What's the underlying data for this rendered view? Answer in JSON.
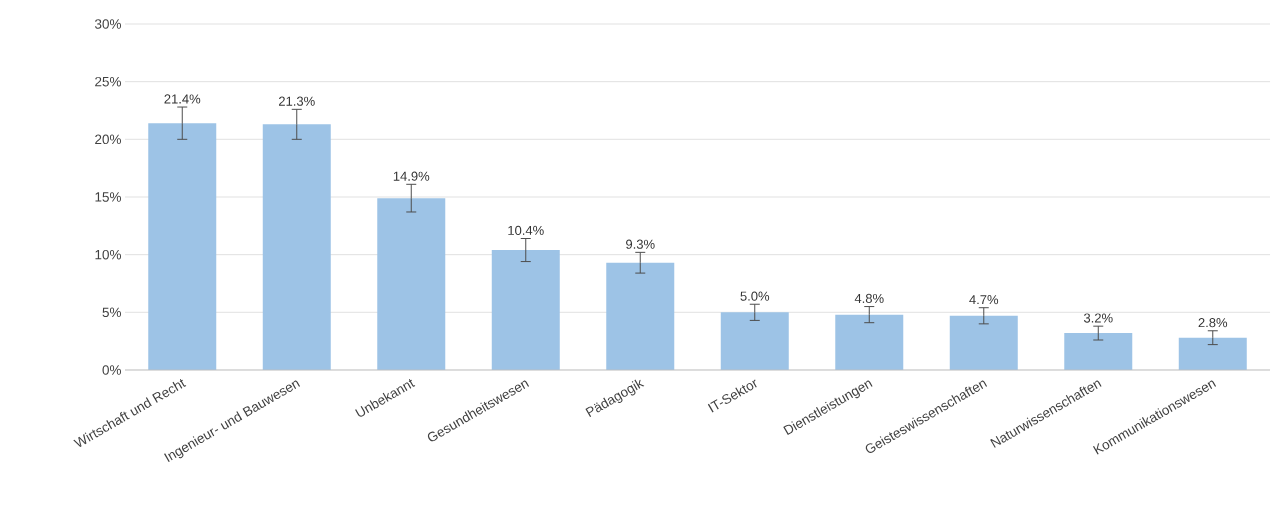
{
  "chart_data": {
    "type": "bar",
    "categories": [
      "Wirtschaft und Recht",
      "Ingenieur- und Bauwesen",
      "Unbekannt",
      "Gesundheitswesen",
      "Pädagogik",
      "IT-Sektor",
      "Dienstleistungen",
      "Geisteswissenschaften",
      "Naturwissenschaften",
      "Kommunikationswesen"
    ],
    "values": [
      21.4,
      21.3,
      14.9,
      10.4,
      9.3,
      5.0,
      4.8,
      4.7,
      3.2,
      2.8
    ],
    "errors": [
      1.4,
      1.3,
      1.2,
      1.0,
      0.9,
      0.7,
      0.7,
      0.7,
      0.6,
      0.6
    ],
    "value_labels": [
      "21.4%",
      "21.3%",
      "14.9%",
      "10.4%",
      "9.3%",
      "5.0%",
      "4.8%",
      "4.7%",
      "3.2%",
      "2.8%"
    ],
    "color": "#9dc3e6",
    "ylim": [
      0,
      30
    ],
    "yticks": [
      {
        "value": 0,
        "label": "0%"
      },
      {
        "value": 5,
        "label": "5%"
      },
      {
        "value": 10,
        "label": "10%"
      },
      {
        "value": 15,
        "label": "15%"
      },
      {
        "value": 20,
        "label": "20%"
      },
      {
        "value": 25,
        "label": "25%"
      },
      {
        "value": 30,
        "label": "30%"
      }
    ],
    "grid": "y"
  }
}
